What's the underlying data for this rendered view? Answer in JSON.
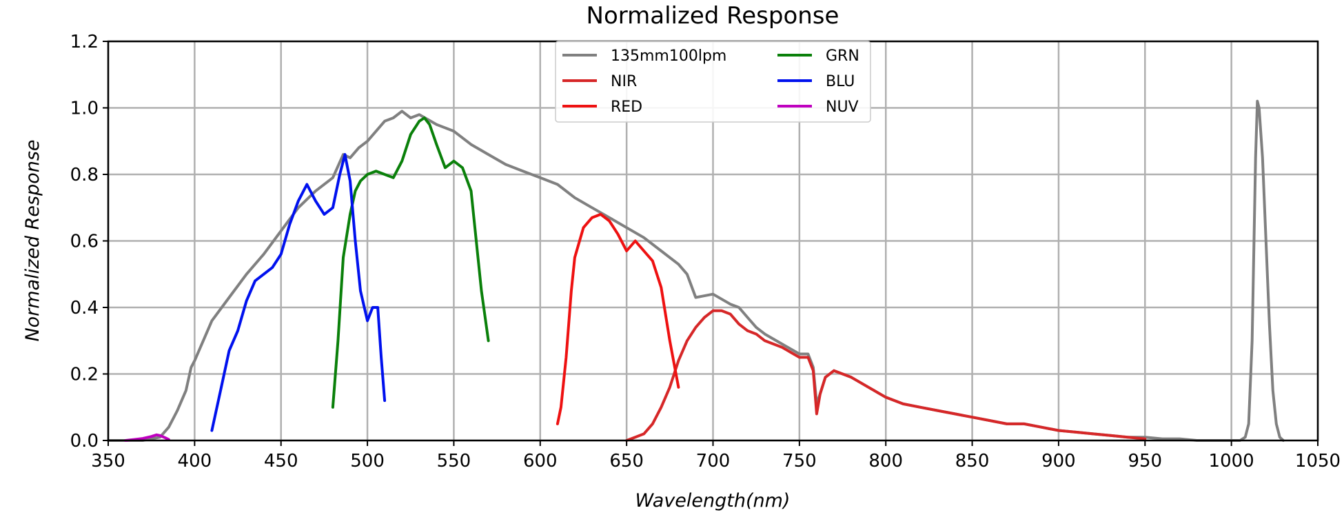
{
  "chart_data": {
    "type": "line",
    "title": "Normalized Response",
    "xlabel": "Wavelength(nm)",
    "ylabel": "Normalized Response",
    "xlim": [
      350,
      1050
    ],
    "ylim": [
      0,
      1.2
    ],
    "xticks": [
      "350",
      "400",
      "450",
      "500",
      "550",
      "600",
      "650",
      "700",
      "750",
      "800",
      "850",
      "900",
      "950",
      "1000",
      "1050"
    ],
    "yticks": [
      "0.0",
      "0.2",
      "0.4",
      "0.6",
      "0.8",
      "1.0",
      "1.2"
    ],
    "grid": true,
    "legend": {
      "placement": "top-center",
      "columns": 2
    },
    "series": [
      {
        "name": "135mm100lpm",
        "color": "#808080",
        "x": [
          350,
          370,
          380,
          385,
          390,
          395,
          398,
          400,
          405,
          410,
          420,
          430,
          440,
          450,
          460,
          470,
          480,
          486,
          490,
          495,
          500,
          505,
          510,
          515,
          520,
          525,
          530,
          540,
          550,
          560,
          570,
          580,
          590,
          600,
          610,
          620,
          630,
          640,
          650,
          660,
          670,
          680,
          685,
          690,
          700,
          710,
          715,
          720,
          725,
          730,
          740,
          750,
          755,
          758,
          760,
          762,
          765,
          770,
          780,
          790,
          800,
          810,
          820,
          830,
          840,
          850,
          860,
          870,
          880,
          890,
          900,
          910,
          920,
          930,
          940,
          950,
          960,
          970,
          980,
          990,
          1000,
          1005,
          1008,
          1010,
          1012,
          1014,
          1015,
          1016,
          1018,
          1020,
          1022,
          1024,
          1026,
          1028,
          1030
        ],
        "values": [
          0.0,
          0.0,
          0.01,
          0.04,
          0.09,
          0.15,
          0.22,
          0.24,
          0.3,
          0.36,
          0.43,
          0.5,
          0.56,
          0.63,
          0.7,
          0.75,
          0.79,
          0.86,
          0.85,
          0.88,
          0.9,
          0.93,
          0.96,
          0.97,
          0.99,
          0.97,
          0.98,
          0.95,
          0.93,
          0.89,
          0.86,
          0.83,
          0.81,
          0.79,
          0.77,
          0.73,
          0.7,
          0.67,
          0.64,
          0.61,
          0.57,
          0.53,
          0.5,
          0.43,
          0.44,
          0.41,
          0.4,
          0.37,
          0.34,
          0.32,
          0.29,
          0.26,
          0.26,
          0.22,
          0.11,
          0.14,
          0.19,
          0.21,
          0.19,
          0.16,
          0.13,
          0.11,
          0.1,
          0.09,
          0.08,
          0.07,
          0.06,
          0.05,
          0.05,
          0.04,
          0.03,
          0.025,
          0.02,
          0.015,
          0.01,
          0.01,
          0.005,
          0.005,
          0.0,
          0.0,
          0.0,
          0.0,
          0.01,
          0.05,
          0.3,
          0.85,
          1.02,
          1.0,
          0.85,
          0.6,
          0.35,
          0.15,
          0.05,
          0.01,
          0.0
        ]
      },
      {
        "name": "NIR",
        "color": "#d62728",
        "x": [
          650,
          655,
          660,
          665,
          670,
          675,
          680,
          685,
          690,
          695,
          700,
          705,
          710,
          715,
          720,
          725,
          730,
          740,
          750,
          755,
          758,
          760,
          762,
          765,
          770,
          780,
          790,
          800,
          810,
          820,
          830,
          840,
          850,
          860,
          870,
          880,
          890,
          900,
          910,
          920,
          930,
          940,
          950
        ],
        "values": [
          0.0,
          0.01,
          0.02,
          0.05,
          0.1,
          0.16,
          0.24,
          0.3,
          0.34,
          0.37,
          0.39,
          0.39,
          0.38,
          0.35,
          0.33,
          0.32,
          0.3,
          0.28,
          0.25,
          0.25,
          0.21,
          0.08,
          0.14,
          0.19,
          0.21,
          0.19,
          0.16,
          0.13,
          0.11,
          0.1,
          0.09,
          0.08,
          0.07,
          0.06,
          0.05,
          0.05,
          0.04,
          0.03,
          0.025,
          0.02,
          0.015,
          0.01,
          0.005
        ]
      },
      {
        "name": "RED",
        "color": "#ee1111",
        "x": [
          610,
          612,
          615,
          618,
          620,
          625,
          630,
          635,
          640,
          645,
          650,
          655,
          660,
          665,
          670,
          675,
          680
        ],
        "values": [
          0.05,
          0.1,
          0.25,
          0.45,
          0.55,
          0.64,
          0.67,
          0.68,
          0.66,
          0.62,
          0.57,
          0.6,
          0.57,
          0.54,
          0.46,
          0.3,
          0.16
        ]
      },
      {
        "name": "GRN",
        "color": "#0a800a",
        "x": [
          480,
          483,
          486,
          490,
          493,
          496,
          500,
          505,
          510,
          515,
          520,
          525,
          530,
          533,
          536,
          540,
          545,
          550,
          555,
          560,
          563,
          566,
          570
        ],
        "values": [
          0.1,
          0.3,
          0.55,
          0.68,
          0.75,
          0.78,
          0.8,
          0.81,
          0.8,
          0.79,
          0.84,
          0.92,
          0.96,
          0.97,
          0.95,
          0.89,
          0.82,
          0.84,
          0.82,
          0.75,
          0.6,
          0.45,
          0.3
        ]
      },
      {
        "name": "BLU",
        "color": "#0011ee",
        "x": [
          410,
          415,
          420,
          425,
          430,
          435,
          440,
          445,
          450,
          455,
          460,
          465,
          470,
          475,
          480,
          484,
          487,
          490,
          493,
          496,
          500,
          503,
          506,
          508,
          510
        ],
        "values": [
          0.03,
          0.15,
          0.27,
          0.33,
          0.42,
          0.48,
          0.5,
          0.52,
          0.56,
          0.65,
          0.72,
          0.77,
          0.72,
          0.68,
          0.7,
          0.8,
          0.86,
          0.78,
          0.6,
          0.45,
          0.36,
          0.4,
          0.4,
          0.25,
          0.12
        ]
      },
      {
        "name": "NUV",
        "color": "#bf00bf",
        "x": [
          360,
          365,
          370,
          375,
          378,
          380,
          383,
          385
        ],
        "values": [
          0.0,
          0.003,
          0.006,
          0.012,
          0.017,
          0.015,
          0.008,
          0.003
        ]
      }
    ]
  }
}
